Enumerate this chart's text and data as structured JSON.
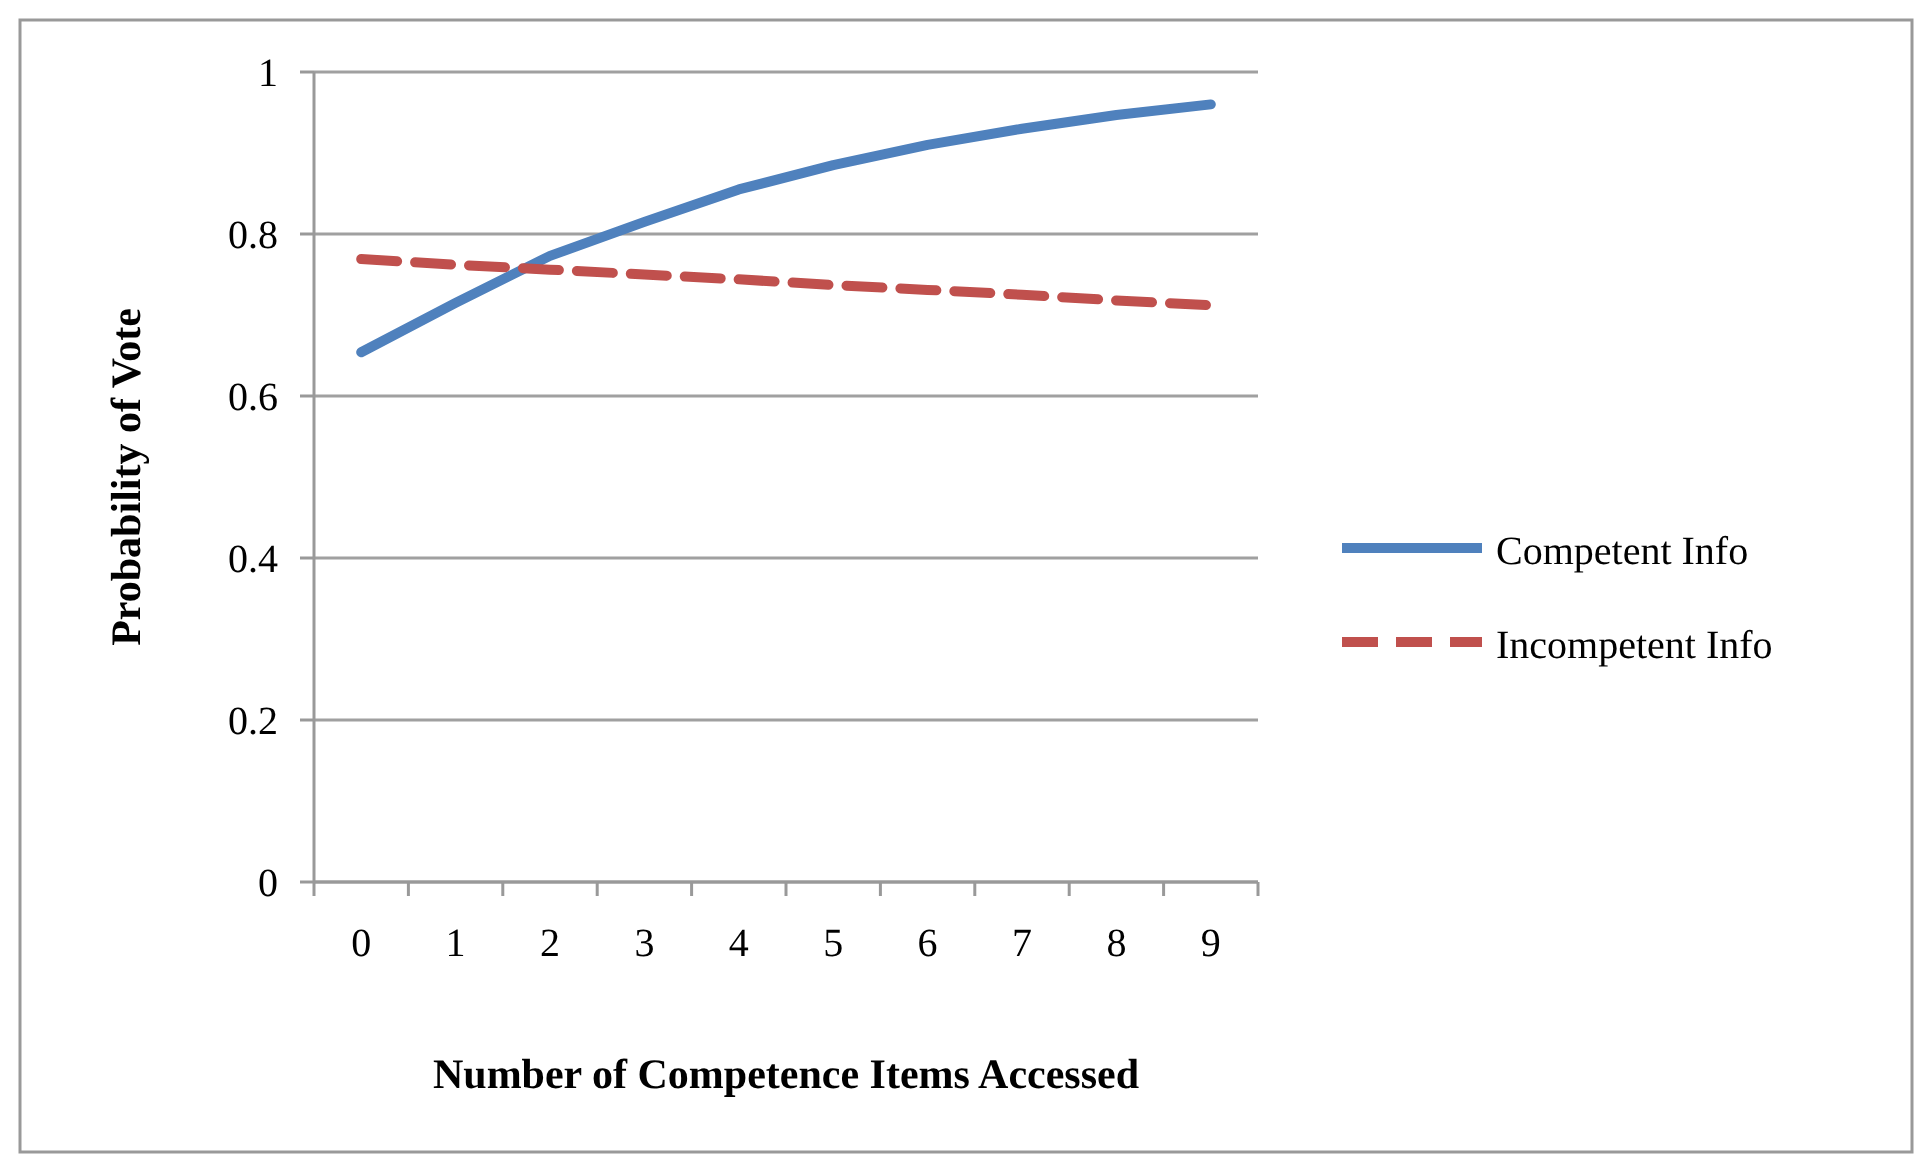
{
  "chart_data": {
    "type": "line",
    "xlabel": "Number of Competence Items Accessed",
    "ylabel": "Probability of Vote",
    "categories": [
      "0",
      "1",
      "2",
      "3",
      "4",
      "5",
      "6",
      "7",
      "8",
      "9"
    ],
    "series": [
      {
        "name": "Competent Info",
        "color": "#4f81bd",
        "line_style": "solid",
        "values": [
          0.654,
          0.715,
          0.773,
          0.815,
          0.855,
          0.885,
          0.91,
          0.93,
          0.947,
          0.96
        ]
      },
      {
        "name": "Incompetent Info",
        "color": "#c0504d",
        "line_style": "dashed",
        "values": [
          0.769,
          0.762,
          0.756,
          0.75,
          0.744,
          0.737,
          0.731,
          0.725,
          0.718,
          0.712
        ]
      }
    ],
    "ylim": [
      0,
      1
    ],
    "yticks": [
      0,
      0.2,
      0.4,
      0.6,
      0.8,
      1
    ],
    "grid": "y",
    "legend": "right",
    "marker": "none"
  }
}
